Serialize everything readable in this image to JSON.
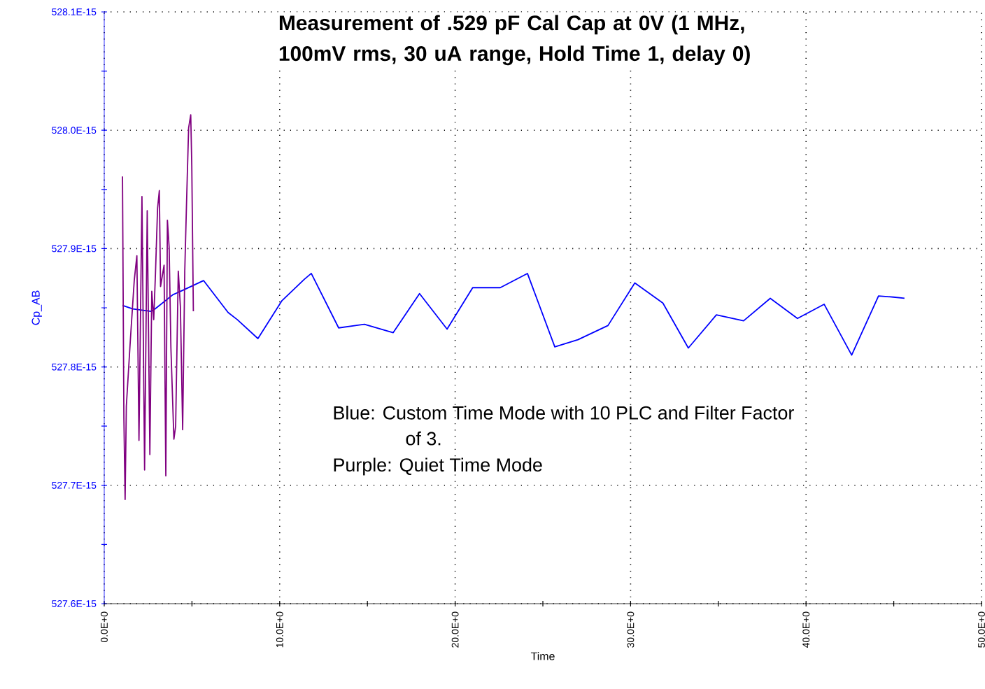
{
  "chart_data": {
    "type": "line",
    "title": "Measurement  of .529 pF Cal Cap at 0V (1 MHz, 100mV rms, 30 uA range, Hold Time 1, delay 0)",
    "xlabel": "Time",
    "ylabel": "Cp_AB",
    "annotations": [
      "Blue:  Custom Time Mode with 10 PLC and Filter Factor of 3.",
      "Purple:  Quiet Time Mode"
    ],
    "grid": true,
    "marker": "none",
    "line_style": "solid",
    "xlim": [
      0,
      50
    ],
    "ylim": [
      5.276e-13,
      5.281e-13
    ],
    "xticks": [
      {
        "value": 0,
        "label": "0.0E+0"
      },
      {
        "value": 5,
        "label": null
      },
      {
        "value": 10,
        "label": "10.0E+0"
      },
      {
        "value": 15,
        "label": null
      },
      {
        "value": 20,
        "label": "20.0E+0"
      },
      {
        "value": 25,
        "label": null
      },
      {
        "value": 30,
        "label": "30.0E+0"
      },
      {
        "value": 35,
        "label": null
      },
      {
        "value": 40,
        "label": "40.0E+0"
      },
      {
        "value": 45,
        "label": null
      },
      {
        "value": 50,
        "label": "50.0E+0"
      }
    ],
    "yticks": [
      {
        "value": 5.276e-13,
        "label": "527.6E-15"
      },
      {
        "value": 5.2765e-13,
        "label": null
      },
      {
        "value": 5.277e-13,
        "label": "527.7E-15"
      },
      {
        "value": 5.2775e-13,
        "label": null
      },
      {
        "value": 5.278e-13,
        "label": "527.8E-15"
      },
      {
        "value": 5.2785e-13,
        "label": null
      },
      {
        "value": 5.279e-13,
        "label": "527.9E-15"
      },
      {
        "value": 5.2795e-13,
        "label": null
      },
      {
        "value": 5.28e-13,
        "label": "528.0E-15"
      },
      {
        "value": 5.2805e-13,
        "label": null
      },
      {
        "value": 5.281e-13,
        "label": "528.1E-15"
      }
    ],
    "series": [
      {
        "color": "#0000ff",
        "x": [
          1.04,
          1.63,
          2.67,
          2.89,
          3.91,
          4.51,
          5.66,
          7.06,
          7.58,
          8.76,
          10.13,
          11.4,
          11.8,
          13.36,
          14.83,
          16.47,
          17.97,
          19.54,
          21.0,
          22.57,
          24.12,
          25.68,
          27.0,
          28.71,
          30.24,
          31.84,
          33.29,
          34.89,
          36.44,
          37.96,
          39.51,
          41.03,
          42.6,
          44.13,
          44.98,
          45.61
        ],
        "values": [
          5.27852e-13,
          5.27849e-13,
          5.27847e-13,
          5.27849e-13,
          5.27861e-13,
          5.27865e-13,
          5.27873e-13,
          5.27846e-13,
          5.2784e-13,
          5.27824e-13,
          5.27856e-13,
          5.27874e-13,
          5.27879e-13,
          5.27833e-13,
          5.27836e-13,
          5.27829e-13,
          5.27862e-13,
          5.27832e-13,
          5.27867e-13,
          5.27867e-13,
          5.27879e-13,
          5.27817e-13,
          5.27823e-13,
          5.27835e-13,
          5.27871e-13,
          5.27854e-13,
          5.27816e-13,
          5.27844e-13,
          5.27839e-13,
          5.27858e-13,
          5.27841e-13,
          5.27853e-13,
          5.2781e-13,
          5.2786e-13,
          5.27859e-13,
          5.27858e-13
        ]
      },
      {
        "color": "#800080",
        "x": [
          1.04,
          1.12,
          1.19,
          1.26,
          1.49,
          1.71,
          1.86,
          1.98,
          2.15,
          2.3,
          2.45,
          2.6,
          2.71,
          2.82,
          2.92,
          3.04,
          3.14,
          3.21,
          3.31,
          3.41,
          3.51,
          3.6,
          3.7,
          3.8,
          3.97,
          4.07,
          4.22,
          4.34,
          4.47,
          4.59,
          4.69,
          4.81,
          4.93,
          4.99,
          5.08
        ],
        "values": [
          5.27961e-13,
          5.27757e-13,
          5.27688e-13,
          5.27767e-13,
          5.27823e-13,
          5.27873e-13,
          5.27894e-13,
          5.27738e-13,
          5.27944e-13,
          5.27713e-13,
          5.27932e-13,
          5.27726e-13,
          5.27864e-13,
          5.2784e-13,
          5.27879e-13,
          5.27934e-13,
          5.27949e-13,
          5.27868e-13,
          5.27877e-13,
          5.27886e-13,
          5.27708e-13,
          5.27924e-13,
          5.27901e-13,
          5.27816e-13,
          5.27739e-13,
          5.2775e-13,
          5.27881e-13,
          5.27851e-13,
          5.27747e-13,
          5.27881e-13,
          5.27938e-13,
          5.28002e-13,
          5.28013e-13,
          5.2797e-13,
          5.27847e-13
        ]
      }
    ]
  }
}
